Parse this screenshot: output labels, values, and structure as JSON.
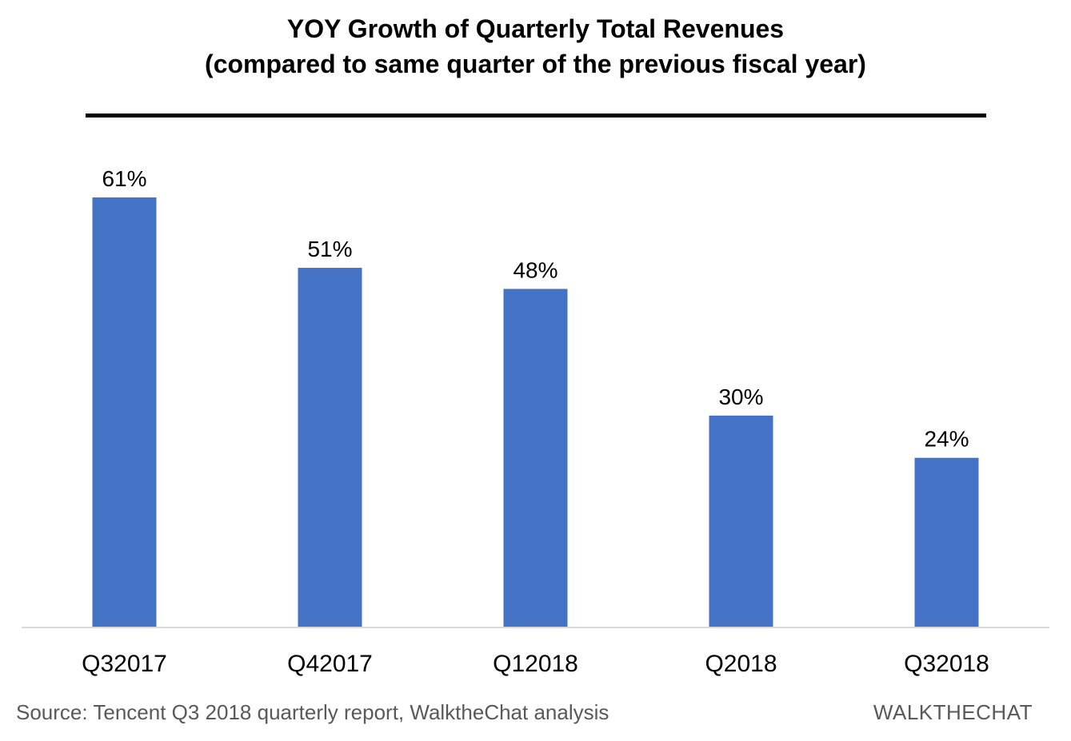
{
  "chart_data": {
    "type": "bar",
    "title": "YOY Growth of Quarterly Total Revenues",
    "subtitle": "(compared to same quarter of the previous fiscal year)",
    "xlabel": "",
    "ylabel": "",
    "categories": [
      "Q32017",
      "Q42017",
      "Q12018",
      "Q2018",
      "Q32018"
    ],
    "values": [
      61,
      51,
      48,
      30,
      24
    ],
    "data_labels": [
      "61%",
      "51%",
      "48%",
      "30%",
      "24%"
    ],
    "unit": "%",
    "ylim": [
      0,
      61
    ],
    "grid": false,
    "legend": "none",
    "bar_color": "#4472C4",
    "axis_color": "#D9D9D9"
  },
  "footer": {
    "source": "Source: Tencent Q3 2018 quarterly report, WalktheChat analysis",
    "brand": "WALKTHECHAT"
  }
}
